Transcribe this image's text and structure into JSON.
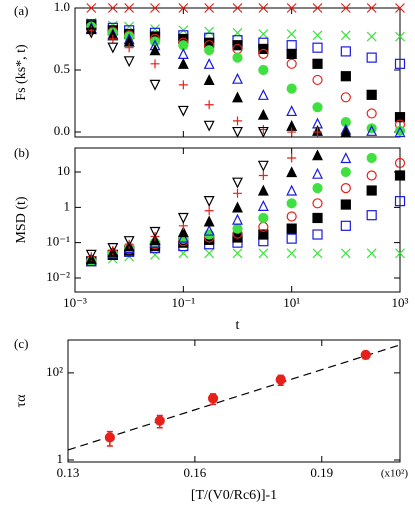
{
  "chart_data": [
    {
      "type": "scatter",
      "panel_label": "(a)",
      "y_label": "Fs (ks*, t)",
      "xscale": "log",
      "xlim": [
        0.001,
        1000
      ],
      "ylim": [
        -0.04,
        1.0
      ],
      "xticks": [
        0.001,
        0.1,
        10,
        1000
      ],
      "yticks": [
        {
          "value": 0,
          "label": "0.0"
        },
        0.5,
        {
          "value": 1,
          "label": "1.0"
        }
      ],
      "x": [
        0.002,
        0.005,
        0.01,
        0.03,
        0.1,
        0.3,
        1,
        3,
        10,
        30,
        100,
        300,
        1000
      ],
      "series": [
        {
          "color": "#e8201a",
          "marker": "x",
          "values": [
            1,
            1,
            1,
            1,
            1,
            1,
            1,
            1,
            1,
            1,
            1,
            1,
            1
          ]
        },
        {
          "color": "#40e040",
          "marker": "x",
          "values": [
            0.88,
            0.86,
            0.85,
            0.83,
            0.82,
            0.81,
            0.8,
            0.79,
            0.79,
            0.78,
            0.78,
            0.77,
            0.77
          ]
        },
        {
          "color": "#1a1ae0",
          "marker": "square",
          "values": [
            0.87,
            0.84,
            0.82,
            0.8,
            0.78,
            0.76,
            0.74,
            0.72,
            0.7,
            0.68,
            0.65,
            0.6,
            0.55
          ]
        },
        {
          "color": "#000000",
          "marker": "square-filled",
          "values": [
            0.86,
            0.82,
            0.79,
            0.77,
            0.75,
            0.72,
            0.7,
            0.67,
            0.63,
            0.55,
            0.45,
            0.3,
            0.12
          ]
        },
        {
          "color": "#e8201a",
          "marker": "circle",
          "values": [
            0.85,
            0.81,
            0.78,
            0.75,
            0.72,
            0.7,
            0.67,
            0.63,
            0.55,
            0.42,
            0.28,
            0.15,
            0.06
          ]
        },
        {
          "color": "#40e040",
          "marker": "circle-filled",
          "values": [
            0.85,
            0.8,
            0.77,
            0.73,
            0.7,
            0.66,
            0.6,
            0.5,
            0.35,
            0.2,
            0.08,
            0.03,
            0.01
          ]
        },
        {
          "color": "#1a1ae0",
          "marker": "triangle",
          "values": [
            0.84,
            0.79,
            0.75,
            0.7,
            0.63,
            0.55,
            0.43,
            0.3,
            0.17,
            0.07,
            0.02,
            0.01,
            0
          ]
        },
        {
          "color": "#000000",
          "marker": "triangle-filled",
          "values": [
            0.83,
            0.78,
            0.73,
            0.66,
            0.55,
            0.42,
            0.28,
            0.14,
            0.05,
            0.01,
            0,
            null,
            null
          ]
        },
        {
          "color": "#e8201a",
          "marker": "plus",
          "values": [
            0.82,
            0.75,
            0.68,
            0.55,
            0.38,
            0.22,
            0.09,
            0.02,
            0,
            0,
            null,
            null,
            null
          ]
        },
        {
          "color": "#000000",
          "marker": "triangle-down",
          "values": [
            0.8,
            0.68,
            0.57,
            0.38,
            0.17,
            0.05,
            0,
            0,
            null,
            null,
            null,
            null,
            null
          ]
        }
      ]
    },
    {
      "type": "scatter",
      "panel_label": "(b)",
      "y_label": "MSD (t)",
      "x_label": "t",
      "xscale": "log",
      "yscale": "log",
      "xlim": [
        0.001,
        1000
      ],
      "ylim": [
        0.004,
        48
      ],
      "xticks": [
        {
          "value": 0.001,
          "label": "10⁻³"
        },
        {
          "value": 0.1,
          "label": "10⁻¹"
        },
        {
          "value": 10,
          "label": "10¹"
        },
        {
          "value": 1000,
          "label": "10³"
        }
      ],
      "yticks": [
        {
          "value": 0.01,
          "label": "10⁻²"
        },
        {
          "value": 0.1,
          "label": "10⁻¹"
        },
        1,
        10
      ],
      "x": [
        0.002,
        0.005,
        0.01,
        0.03,
        0.1,
        0.3,
        1,
        3,
        10,
        30,
        100,
        300,
        1000
      ],
      "series": [
        {
          "color": "#40e040",
          "marker": "x",
          "values": [
            0.03,
            0.035,
            0.04,
            0.045,
            0.05,
            0.05,
            0.05,
            0.05,
            0.05,
            0.05,
            0.05,
            0.05,
            0.05
          ]
        },
        {
          "color": "#1a1ae0",
          "marker": "square",
          "values": [
            0.03,
            0.045,
            0.055,
            0.07,
            0.08,
            0.09,
            0.1,
            0.11,
            0.13,
            0.17,
            0.3,
            0.6,
            1.5
          ]
        },
        {
          "color": "#000000",
          "marker": "square-filled",
          "values": [
            0.03,
            0.045,
            0.06,
            0.08,
            0.1,
            0.12,
            0.14,
            0.17,
            0.25,
            0.5,
            1.2,
            3,
            8
          ]
        },
        {
          "color": "#e8201a",
          "marker": "circle",
          "values": [
            0.03,
            0.05,
            0.065,
            0.09,
            0.11,
            0.14,
            0.18,
            0.28,
            0.55,
            1.3,
            3.5,
            8,
            18
          ]
        },
        {
          "color": "#40e040",
          "marker": "circle-filled",
          "values": [
            0.03,
            0.05,
            0.07,
            0.1,
            0.13,
            0.17,
            0.25,
            0.5,
            1.3,
            3.5,
            10,
            25,
            null
          ]
        },
        {
          "color": "#1a1ae0",
          "marker": "triangle",
          "values": [
            0.03,
            0.05,
            0.07,
            0.1,
            0.14,
            0.22,
            0.45,
            1.1,
            3,
            9,
            25,
            null,
            null
          ]
        },
        {
          "color": "#000000",
          "marker": "triangle-filled",
          "values": [
            0.035,
            0.055,
            0.08,
            0.12,
            0.2,
            0.4,
            1,
            3,
            10,
            30,
            null,
            null,
            null
          ]
        },
        {
          "color": "#e8201a",
          "marker": "plus",
          "values": [
            0.04,
            0.06,
            0.09,
            0.15,
            0.3,
            0.8,
            2.5,
            8,
            25,
            null,
            null,
            null,
            null
          ]
        },
        {
          "color": "#000000",
          "marker": "triangle-down",
          "values": [
            0.045,
            0.07,
            0.11,
            0.2,
            0.5,
            1.5,
            5,
            15,
            null,
            null,
            null,
            null,
            null
          ]
        }
      ]
    },
    {
      "type": "scatter",
      "panel_label": "(c)",
      "y_label": "τα",
      "x_label": "[T/(V0/Rc6)]-1",
      "annotation": "(x10²)",
      "yscale": "log",
      "xlim": [
        0.13,
        0.2085
      ],
      "ylim": [
        0.9,
        570
      ],
      "xticks": [
        0.13,
        0.16,
        0.19
      ],
      "yticks": [
        1,
        {
          "value": 100,
          "label": "10²"
        }
      ],
      "x": [
        0.1399,
        0.1517,
        0.1643,
        0.1803,
        0.2004
      ],
      "series": [
        {
          "color": "#e8201a",
          "marker": "circle-filled",
          "values": [
            3.3,
            8,
            26,
            70,
            260
          ],
          "errors": [
            1.2,
            2.5,
            7,
            18,
            50
          ]
        }
      ],
      "fit": {
        "x": [
          0.13,
          0.2085
        ],
        "y": [
          1.7,
          440
        ]
      }
    }
  ]
}
